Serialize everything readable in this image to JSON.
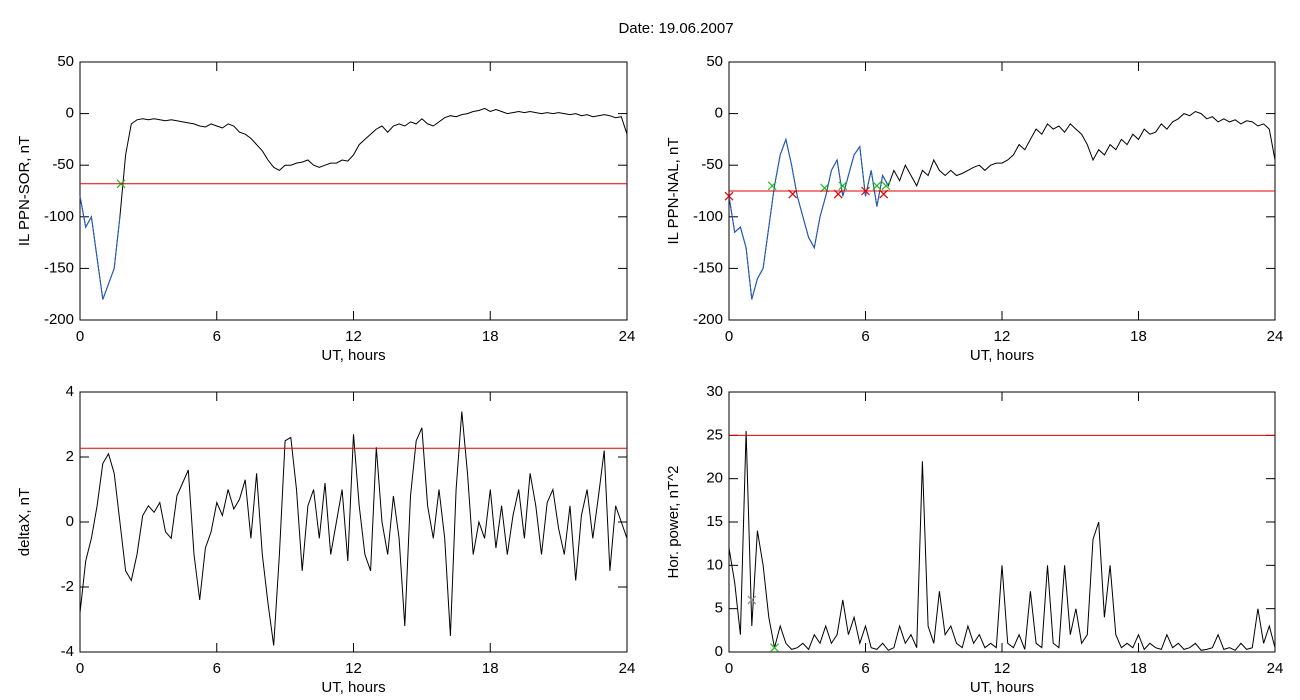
{
  "title": "Date:  19.06.2007",
  "chart_data": [
    {
      "type": "line",
      "ylabel": "IL PPN-SOR, nT",
      "xlabel": "UT, hours",
      "xlim": [
        0,
        24
      ],
      "xticks": [
        0,
        6,
        12,
        18,
        24
      ],
      "ylim": [
        -200,
        50
      ],
      "yticks": [
        -200,
        -150,
        -100,
        -50,
        0,
        50
      ],
      "threshold": -68,
      "threshold_color": "#e00000",
      "x": [
        0,
        0.25,
        0.5,
        0.75,
        1,
        1.25,
        1.5,
        1.75,
        2,
        2.25,
        2.5,
        2.75,
        3,
        3.25,
        3.5,
        3.75,
        4,
        4.25,
        4.5,
        4.75,
        5,
        5.25,
        5.5,
        5.75,
        6,
        6.25,
        6.5,
        6.75,
        7,
        7.25,
        7.5,
        7.75,
        8,
        8.25,
        8.5,
        8.75,
        9,
        9.25,
        9.5,
        9.75,
        10,
        10.25,
        10.5,
        10.75,
        11,
        11.25,
        11.5,
        11.75,
        12,
        12.25,
        12.5,
        12.75,
        13,
        13.25,
        13.5,
        13.75,
        14,
        14.25,
        14.5,
        14.75,
        15,
        15.25,
        15.5,
        15.75,
        16,
        16.25,
        16.5,
        16.75,
        17,
        17.25,
        17.5,
        17.75,
        18,
        18.25,
        18.5,
        18.75,
        19,
        19.25,
        19.5,
        19.75,
        20,
        20.25,
        20.5,
        20.75,
        21,
        21.25,
        21.5,
        21.75,
        22,
        22.25,
        22.5,
        22.75,
        23,
        23.25,
        23.5,
        23.75,
        24
      ],
      "series": [
        {
          "color": "#000000",
          "values": [
            -80,
            -110,
            -100,
            -140,
            -180,
            -165,
            -150,
            -100,
            -40,
            -10,
            -6,
            -5,
            -6,
            -5,
            -6,
            -7,
            -6,
            -7,
            -8,
            -9,
            -10,
            -12,
            -13,
            -10,
            -12,
            -14,
            -10,
            -12,
            -18,
            -20,
            -24,
            -30,
            -36,
            -45,
            -52,
            -55,
            -50,
            -50,
            -48,
            -47,
            -45,
            -50,
            -52,
            -50,
            -48,
            -48,
            -45,
            -46,
            -40,
            -30,
            -25,
            -20,
            -15,
            -12,
            -18,
            -12,
            -10,
            -12,
            -8,
            -10,
            -5,
            -10,
            -12,
            -8,
            -4,
            -2,
            -3,
            -1,
            0,
            2,
            3,
            5,
            2,
            4,
            2,
            0,
            1,
            2,
            1,
            2,
            1,
            0,
            1,
            0,
            1,
            0,
            -1,
            0,
            -2,
            -1,
            -3,
            -2,
            -1,
            -2,
            -4,
            -3,
            -20
          ]
        },
        {
          "color": "#1f5fd0",
          "x": [
            0,
            0.25,
            0.5,
            0.75,
            1,
            1.25,
            1.5,
            1.75
          ],
          "values": [
            -80,
            -110,
            -100,
            -140,
            -180,
            -165,
            -150,
            -100
          ]
        },
        {
          "color": "#22bb22",
          "marker": "x",
          "x": [
            1.8
          ],
          "values": [
            -68
          ]
        }
      ]
    },
    {
      "type": "line",
      "ylabel": "IL PPN-NAL, nT",
      "xlabel": "UT, hours",
      "xlim": [
        0,
        24
      ],
      "xticks": [
        0,
        6,
        12,
        18,
        24
      ],
      "ylim": [
        -200,
        50
      ],
      "yticks": [
        -200,
        -150,
        -100,
        -50,
        0,
        50
      ],
      "threshold": -75,
      "threshold_color": "#e00000",
      "x": [
        0,
        0.25,
        0.5,
        0.75,
        1,
        1.25,
        1.5,
        1.75,
        2,
        2.25,
        2.5,
        2.75,
        3,
        3.25,
        3.5,
        3.75,
        4,
        4.25,
        4.5,
        4.75,
        5,
        5.25,
        5.5,
        5.75,
        6,
        6.25,
        6.5,
        6.75,
        7,
        7.25,
        7.5,
        7.75,
        8,
        8.25,
        8.5,
        8.75,
        9,
        9.25,
        9.5,
        9.75,
        10,
        10.25,
        10.5,
        10.75,
        11,
        11.25,
        11.5,
        11.75,
        12,
        12.25,
        12.5,
        12.75,
        13,
        13.25,
        13.5,
        13.75,
        14,
        14.25,
        14.5,
        14.75,
        15,
        15.25,
        15.5,
        15.75,
        16,
        16.25,
        16.5,
        16.75,
        17,
        17.25,
        17.5,
        17.75,
        18,
        18.25,
        18.5,
        18.75,
        19,
        19.25,
        19.5,
        19.75,
        20,
        20.25,
        20.5,
        20.75,
        21,
        21.25,
        21.5,
        21.75,
        22,
        22.25,
        22.5,
        22.75,
        23,
        23.25,
        23.5,
        23.75,
        24
      ],
      "series": [
        {
          "color": "#000000",
          "values": [
            -80,
            -115,
            -110,
            -130,
            -180,
            -160,
            -150,
            -110,
            -70,
            -40,
            -25,
            -50,
            -80,
            -100,
            -120,
            -130,
            -100,
            -80,
            -55,
            -45,
            -80,
            -60,
            -40,
            -32,
            -80,
            -55,
            -90,
            -60,
            -70,
            -55,
            -65,
            -50,
            -60,
            -70,
            -55,
            -60,
            -45,
            -55,
            -60,
            -55,
            -60,
            -58,
            -55,
            -52,
            -50,
            -55,
            -50,
            -48,
            -48,
            -45,
            -40,
            -30,
            -35,
            -25,
            -15,
            -20,
            -10,
            -15,
            -12,
            -18,
            -10,
            -15,
            -20,
            -30,
            -45,
            -35,
            -40,
            -30,
            -35,
            -25,
            -30,
            -20,
            -25,
            -15,
            -20,
            -18,
            -10,
            -15,
            -8,
            -5,
            0,
            -2,
            2,
            0,
            -5,
            -3,
            -8,
            -5,
            -8,
            -6,
            -10,
            -7,
            -8,
            -12,
            -10,
            -15,
            -45
          ]
        },
        {
          "color": "#1f5fd0",
          "x": [
            0,
            0.25,
            0.5,
            0.75,
            1,
            1.25,
            1.5,
            1.75,
            2,
            2.25,
            2.5,
            2.75,
            3,
            3.25,
            3.5,
            3.75,
            4,
            4.25,
            4.5,
            4.75,
            5,
            5.25,
            5.5,
            5.75,
            6,
            6.25,
            6.5,
            6.75,
            7
          ],
          "values": [
            -80,
            -115,
            -110,
            -130,
            -180,
            -160,
            -150,
            -110,
            -70,
            -40,
            -25,
            -50,
            -80,
            -100,
            -120,
            -130,
            -100,
            -80,
            -55,
            -45,
            -80,
            -60,
            -40,
            -32,
            -80,
            -55,
            -90,
            -60,
            -70
          ]
        },
        {
          "color": "#22bb22",
          "marker": "x",
          "x": [
            1.9,
            4.2,
            5.0,
            6.5,
            6.9
          ],
          "values": [
            -70,
            -72,
            -70,
            -70,
            -70
          ]
        },
        {
          "color": "#e00000",
          "marker": "x",
          "x": [
            0,
            2.8,
            4.8,
            6.0,
            6.8
          ],
          "values": [
            -80,
            -78,
            -78,
            -75,
            -78
          ]
        }
      ]
    },
    {
      "type": "line",
      "ylabel": "deltaX, nT",
      "xlabel": "UT, hours",
      "xlim": [
        0,
        24
      ],
      "xticks": [
        0,
        6,
        12,
        18,
        24
      ],
      "ylim": [
        -4,
        4
      ],
      "yticks": [
        -4,
        -2,
        0,
        2,
        4
      ],
      "threshold": 2.27,
      "threshold_color": "#e00000",
      "x": [
        0,
        0.25,
        0.5,
        0.75,
        1,
        1.25,
        1.5,
        1.75,
        2,
        2.25,
        2.5,
        2.75,
        3,
        3.25,
        3.5,
        3.75,
        4,
        4.25,
        4.5,
        4.75,
        5,
        5.25,
        5.5,
        5.75,
        6,
        6.25,
        6.5,
        6.75,
        7,
        7.25,
        7.5,
        7.75,
        8,
        8.25,
        8.5,
        8.75,
        9,
        9.25,
        9.5,
        9.75,
        10,
        10.25,
        10.5,
        10.75,
        11,
        11.25,
        11.5,
        11.75,
        12,
        12.25,
        12.5,
        12.75,
        13,
        13.25,
        13.5,
        13.75,
        14,
        14.25,
        14.5,
        14.75,
        15,
        15.25,
        15.5,
        15.75,
        16,
        16.25,
        16.5,
        16.75,
        17,
        17.25,
        17.5,
        17.75,
        18,
        18.25,
        18.5,
        18.75,
        19,
        19.25,
        19.5,
        19.75,
        20,
        20.25,
        20.5,
        20.75,
        21,
        21.25,
        21.5,
        21.75,
        22,
        22.25,
        22.5,
        22.75,
        23,
        23.25,
        23.5,
        23.75,
        24
      ],
      "series": [
        {
          "color": "#000000",
          "values": [
            -2.8,
            -1.2,
            -0.5,
            0.5,
            1.8,
            2.1,
            1.5,
            0,
            -1.5,
            -1.8,
            -1,
            0.2,
            0.5,
            0.3,
            0.6,
            -0.3,
            -0.5,
            0.8,
            1.2,
            1.6,
            -1,
            -2.4,
            -0.8,
            -0.3,
            0.6,
            0.2,
            1,
            0.4,
            0.7,
            1.3,
            -0.5,
            1.5,
            -1,
            -2.5,
            -3.8,
            -1,
            2.5,
            2.6,
            1,
            -1.5,
            0.5,
            1,
            -0.5,
            1.2,
            -1,
            0,
            1,
            -1.2,
            2.7,
            0.5,
            -1,
            -1.5,
            2.3,
            0,
            -1,
            0.8,
            -0.5,
            -3.2,
            0.8,
            2.5,
            2.9,
            0.5,
            -0.5,
            1,
            -0.5,
            -3.5,
            1,
            3.4,
            1.5,
            -1,
            0,
            -0.5,
            1,
            -0.8,
            0.5,
            -1,
            0.2,
            1,
            -0.5,
            1.5,
            0.5,
            -1,
            0.6,
            1,
            -0.2,
            -1,
            0.5,
            -1.8,
            0.2,
            1,
            -0.5,
            0.8,
            2.2,
            -1.5,
            0.5,
            0,
            -0.5
          ]
        }
      ]
    },
    {
      "type": "line",
      "ylabel": "Hor. power, nT^2",
      "xlabel": "UT, hours",
      "xlim": [
        0,
        24
      ],
      "xticks": [
        0,
        6,
        12,
        18,
        24
      ],
      "ylim": [
        0,
        30
      ],
      "yticks": [
        0,
        5,
        10,
        15,
        20,
        25,
        30
      ],
      "threshold": 25,
      "threshold_color": "#e00000",
      "x": [
        0,
        0.25,
        0.5,
        0.75,
        1,
        1.25,
        1.5,
        1.75,
        2,
        2.25,
        2.5,
        2.75,
        3,
        3.25,
        3.5,
        3.75,
        4,
        4.25,
        4.5,
        4.75,
        5,
        5.25,
        5.5,
        5.75,
        6,
        6.25,
        6.5,
        6.75,
        7,
        7.25,
        7.5,
        7.75,
        8,
        8.25,
        8.5,
        8.75,
        9,
        9.25,
        9.5,
        9.75,
        10,
        10.25,
        10.5,
        10.75,
        11,
        11.25,
        11.5,
        11.75,
        12,
        12.25,
        12.5,
        12.75,
        13,
        13.25,
        13.5,
        13.75,
        14,
        14.25,
        14.5,
        14.75,
        15,
        15.25,
        15.5,
        15.75,
        16,
        16.25,
        16.5,
        16.75,
        17,
        17.25,
        17.5,
        17.75,
        18,
        18.25,
        18.5,
        18.75,
        19,
        19.25,
        19.5,
        19.75,
        20,
        20.25,
        20.5,
        20.75,
        21,
        21.25,
        21.5,
        21.75,
        22,
        22.25,
        22.5,
        22.75,
        23,
        23.25,
        23.5,
        23.75,
        24
      ],
      "series": [
        {
          "color": "#000000",
          "values": [
            12,
            8,
            2,
            25.5,
            3,
            14,
            10,
            4,
            0.5,
            3,
            1,
            0.3,
            0.5,
            1,
            0.3,
            2,
            1,
            3,
            1,
            2,
            6,
            2,
            4,
            1,
            3,
            0.5,
            0.3,
            1,
            0.2,
            0.5,
            3,
            1,
            2,
            0.5,
            22,
            3,
            1,
            7,
            2,
            3,
            1,
            0.5,
            3,
            1,
            2,
            0.5,
            1,
            0.5,
            10,
            1,
            0.5,
            2,
            0.3,
            7,
            1,
            0.5,
            10,
            1,
            0.5,
            10,
            2,
            5,
            1,
            2,
            13,
            15,
            4,
            10,
            2,
            0.5,
            1,
            0.5,
            2,
            0.3,
            1,
            0.5,
            0.3,
            2,
            0.5,
            1,
            0.3,
            0.5,
            1,
            0.2,
            0.3,
            0.5,
            2,
            0.3,
            0.5,
            0.2,
            1,
            0.3,
            0.5,
            5,
            1,
            3,
            0.5
          ]
        },
        {
          "color": "#888888",
          "marker": "x",
          "x": [
            1.0
          ],
          "values": [
            6
          ]
        },
        {
          "color": "#22bb22",
          "marker": "x",
          "x": [
            2.0
          ],
          "values": [
            0.5
          ]
        }
      ]
    }
  ]
}
